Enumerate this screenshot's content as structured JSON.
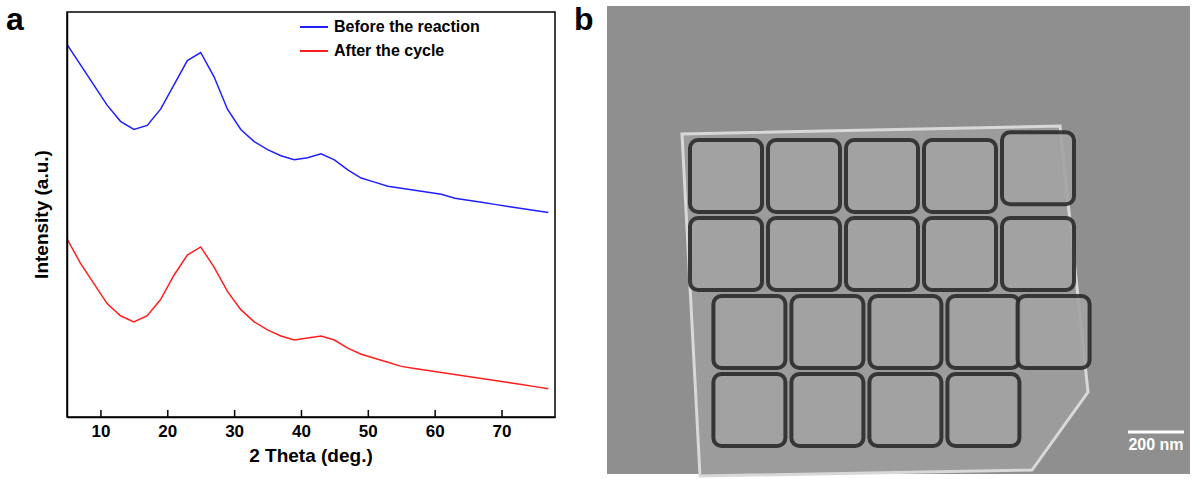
{
  "chart_data": {
    "type": "line",
    "xlabel": "2 Theta (deg.)",
    "ylabel": "Intensity (a.u.)",
    "x": [
      5,
      7,
      9,
      11,
      13,
      15,
      17,
      19,
      21,
      23,
      25,
      27,
      29,
      31,
      33,
      35,
      37,
      39,
      41,
      43,
      45,
      47,
      49,
      51,
      53,
      55,
      57,
      59,
      61,
      63,
      65,
      67,
      69,
      71,
      73,
      75,
      77
    ],
    "series": [
      {
        "name": "Before the reaction",
        "color": "#1f1fff",
        "values": [
          92,
          87,
          82,
          77,
          73,
          71,
          72,
          76,
          82,
          88,
          90,
          84,
          76,
          71,
          68,
          66,
          64.5,
          63.5,
          64,
          65,
          63.5,
          61,
          59,
          58,
          57,
          56.5,
          56,
          55.5,
          55,
          54,
          53.5,
          53,
          52.5,
          52,
          51.5,
          51,
          50.5
        ]
      },
      {
        "name": "After the cycle",
        "color": "#ff1f1f",
        "values": [
          44,
          38,
          33,
          28,
          25,
          23.5,
          25,
          29,
          35,
          40,
          42,
          37,
          31,
          26.5,
          23.5,
          21.5,
          20,
          19,
          19.5,
          20,
          19,
          17,
          15.5,
          14.5,
          13.5,
          12.5,
          12,
          11.5,
          11,
          10.5,
          10,
          9.5,
          9,
          8.5,
          8,
          7.5,
          7
        ]
      }
    ],
    "xlim": [
      5,
      78
    ],
    "ylim": [
      0,
      100
    ],
    "xticks": [
      10,
      20,
      30,
      40,
      50,
      60,
      70
    ],
    "tick_labels": "x",
    "legend": "upper right"
  },
  "panel_labels": [
    "a",
    "b"
  ],
  "image": {
    "scale_bar_label": "200 nm"
  }
}
